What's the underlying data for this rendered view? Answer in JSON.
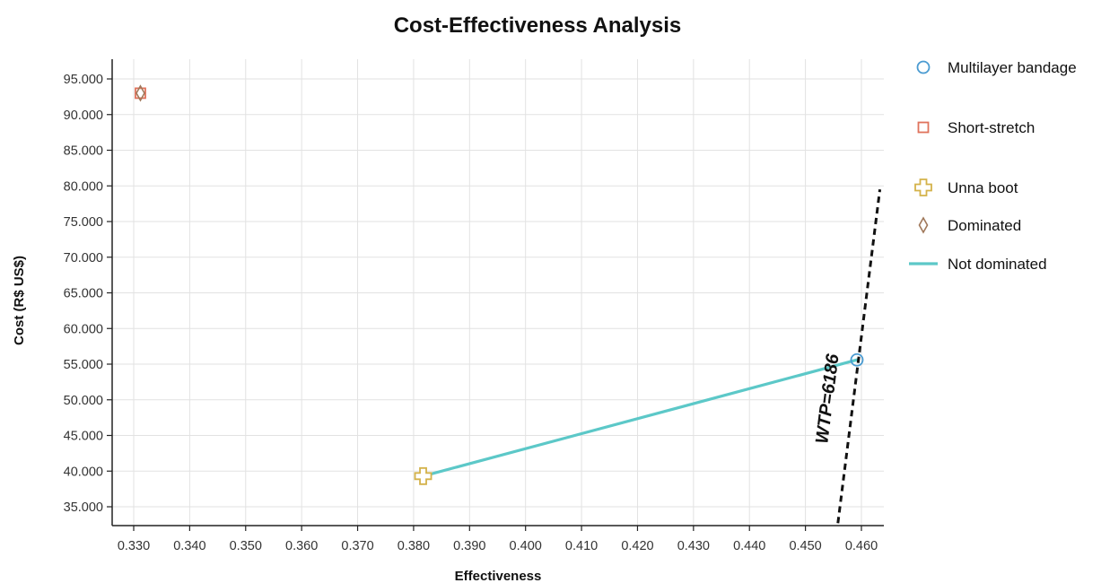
{
  "chart_data": {
    "type": "scatter",
    "title": "Cost-Effectiveness Analysis",
    "xlabel": "Effectiveness",
    "ylabel": "Cost (R$ US$)",
    "xlim": [
      0.33,
      0.46
    ],
    "ylim": [
      35000,
      95000
    ],
    "x_ticks": [
      "0.330",
      "0.340",
      "0.350",
      "0.360",
      "0.370",
      "0.380",
      "0.390",
      "0.400",
      "0.410",
      "0.420",
      "0.430",
      "0.440",
      "0.450",
      "0.460"
    ],
    "y_ticks": [
      "35.000",
      "40.000",
      "45.000",
      "50.000",
      "55.000",
      "60.000",
      "65.000",
      "70.000",
      "75.000",
      "80.000",
      "85.000",
      "90.000",
      "95.000"
    ],
    "grid": true,
    "legend_position": "right",
    "series": [
      {
        "name": "Multilayer bandage",
        "marker": "circle",
        "color": "#4a9bd1",
        "points": [
          {
            "x": 0.4592,
            "y": 55600
          }
        ]
      },
      {
        "name": "Short-stretch",
        "marker": "square",
        "color": "#e0735c",
        "points": [
          {
            "x": 0.3312,
            "y": 93000
          }
        ]
      },
      {
        "name": "Unna boot",
        "marker": "cross",
        "color": "#d4b24a",
        "points": [
          {
            "x": 0.3817,
            "y": 39300
          }
        ]
      },
      {
        "name": "Dominated",
        "marker": "diamond",
        "color": "#a0785a",
        "points": [
          {
            "x": 0.3312,
            "y": 93000
          }
        ]
      },
      {
        "name": "Not dominated",
        "marker": "line",
        "color": "#5cc8c8",
        "points": [
          {
            "x": 0.3817,
            "y": 39300
          },
          {
            "x": 0.4592,
            "y": 55600
          }
        ]
      }
    ],
    "wtp_line": {
      "label": "WTP=6186",
      "color": "#111111",
      "style": "dashed",
      "points": [
        {
          "x": 0.4558,
          "y": 32700
        },
        {
          "x": 0.4633,
          "y": 79500
        }
      ]
    }
  }
}
